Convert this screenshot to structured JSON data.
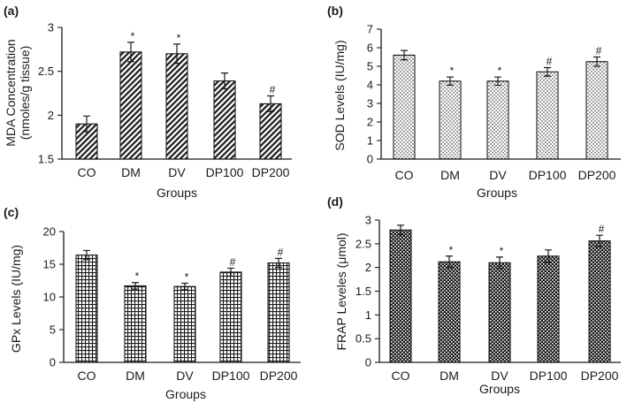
{
  "chart_data": [
    {
      "type": "bar",
      "panel_label": "(a)",
      "categories": [
        "CO",
        "DM",
        "DV",
        "DP100",
        "DP200"
      ],
      "values": [
        1.9,
        2.72,
        2.7,
        2.39,
        2.13
      ],
      "errors": [
        0.09,
        0.11,
        0.11,
        0.09,
        0.09
      ],
      "annotations": [
        "",
        "*",
        "*",
        "",
        "#"
      ],
      "ylim": [
        1.5,
        3
      ],
      "yticks": [
        "1.5",
        "2",
        "2.5",
        "3"
      ],
      "ytick_values": [
        1.5,
        2,
        2.5,
        3
      ],
      "ylabel_line1": "MDA Concentration",
      "ylabel_line2": "(nmoles/g tissue)",
      "xlabel": "Groups",
      "pattern": "diagonal-stripes"
    },
    {
      "type": "bar",
      "panel_label": "(b)",
      "categories": [
        "CO",
        "DM",
        "DV",
        "DP100",
        "DP200"
      ],
      "values": [
        5.6,
        4.2,
        4.2,
        4.7,
        5.25
      ],
      "errors": [
        0.25,
        0.22,
        0.22,
        0.23,
        0.25
      ],
      "annotations": [
        "",
        "*",
        "*",
        "#",
        "#"
      ],
      "ylim": [
        0,
        7
      ],
      "yticks": [
        "0",
        "1",
        "2",
        "3",
        "4",
        "5",
        "6",
        "7"
      ],
      "ytick_values": [
        0,
        1,
        2,
        3,
        4,
        5,
        6,
        7
      ],
      "ylabel_line1": "SOD Levels (IU/mg)",
      "ylabel_line2": "",
      "xlabel": "Groups",
      "pattern": "dots"
    },
    {
      "type": "bar",
      "panel_label": "(c)",
      "categories": [
        "CO",
        "DM",
        "DV",
        "DP100",
        "DP200"
      ],
      "values": [
        16.4,
        11.7,
        11.6,
        13.8,
        15.2
      ],
      "errors": [
        0.7,
        0.5,
        0.5,
        0.6,
        0.7
      ],
      "annotations": [
        "",
        "*",
        "*",
        "#",
        "#"
      ],
      "ylim": [
        0,
        20
      ],
      "yticks": [
        "0",
        "5",
        "10",
        "15",
        "20"
      ],
      "ytick_values": [
        0,
        5,
        10,
        15,
        20
      ],
      "ylabel_line1": "GPx Levels (IU/mg)",
      "ylabel_line2": "",
      "xlabel": "Groups",
      "pattern": "grid"
    },
    {
      "type": "bar",
      "panel_label": "(d)",
      "categories": [
        "CO",
        "DM",
        "DV",
        "DP100",
        "DP200"
      ],
      "values": [
        2.79,
        2.12,
        2.1,
        2.24,
        2.56
      ],
      "errors": [
        0.1,
        0.12,
        0.12,
        0.13,
        0.12
      ],
      "annotations": [
        "",
        "*",
        "*",
        "",
        "#"
      ],
      "ylim": [
        0,
        3
      ],
      "yticks": [
        "0",
        "0.5",
        "1",
        "1.5",
        "2",
        "2.5",
        "3"
      ],
      "ytick_values": [
        0,
        0.5,
        1,
        1.5,
        2,
        2.5,
        3
      ],
      "ylabel_line1": "FRAP Leveles (μmol)",
      "ylabel_line2": "",
      "xlabel": "Groups",
      "pattern": "checker"
    }
  ]
}
